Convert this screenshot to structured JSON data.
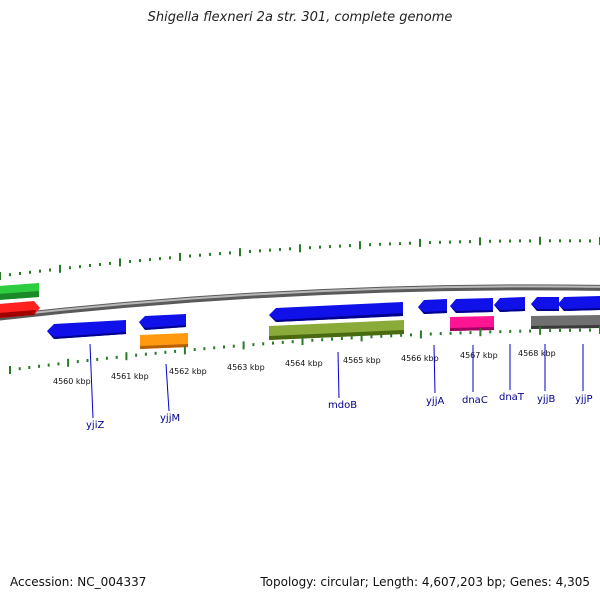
{
  "title": "Shigella flexneri 2a str. 301, complete genome",
  "footer": {
    "accession": "Accession: NC_004337",
    "summary": "Topology: circular; Length: 4,607,203 bp; Genes: 4,305"
  },
  "colors": {
    "forward_cds": "#1010e8",
    "reverse_cds": "#1010e8",
    "backbone": "#8a8a8a",
    "tick": "#2a7a2a",
    "gene_label": "#00008b",
    "green_feature": "#2ecc40",
    "red_feature": "#ff2020",
    "orange_feature": "#ff9a10",
    "olive_feature": "#7a9a30",
    "magenta_feature": "#ff1493",
    "gray_feature": "#707070"
  },
  "kbp_labels": [
    "4560 kbp",
    "4561 kbp",
    "4562 kbp",
    "4563 kbp",
    "4564 kbp",
    "4565 kbp",
    "4566 kbp",
    "4567 kbp",
    "4568 kbp"
  ],
  "genes": [
    "yjiZ",
    "yjjM",
    "mdoB",
    "yjjA",
    "dnaC",
    "dnaT",
    "yjjB",
    "yjjP"
  ]
}
